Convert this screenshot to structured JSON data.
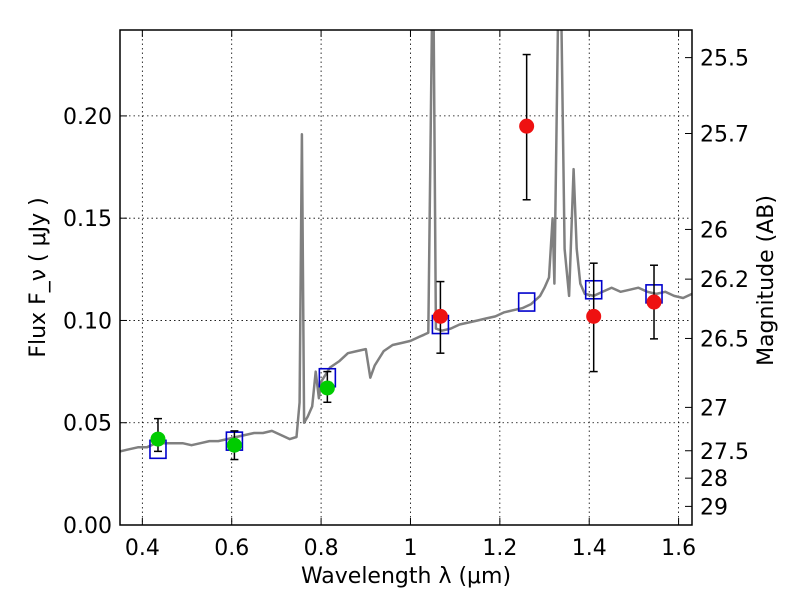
{
  "chart_data": {
    "type": "scatter",
    "xlabel": "Wavelength  λ (μm)",
    "ylabel": "Flux  F_ν  ( μJy )",
    "y2label": "Magnitude (AB)",
    "xlim": [
      0.35,
      1.63
    ],
    "ylim": [
      0.0,
      0.242
    ],
    "grid": true,
    "x_ticks": [
      {
        "value": 0.4,
        "label": "0.4"
      },
      {
        "value": 0.6,
        "label": "0.6"
      },
      {
        "value": 0.8,
        "label": "0.8"
      },
      {
        "value": 1.0,
        "label": "1"
      },
      {
        "value": 1.2,
        "label": "1.2"
      },
      {
        "value": 1.4,
        "label": "1.4"
      },
      {
        "value": 1.6,
        "label": "1.6"
      }
    ],
    "y_ticks": [
      {
        "value": 0.0,
        "label": "0.00"
      },
      {
        "value": 0.05,
        "label": "0.05"
      },
      {
        "value": 0.1,
        "label": "0.10"
      },
      {
        "value": 0.15,
        "label": "0.15"
      },
      {
        "value": 0.2,
        "label": "0.20"
      }
    ],
    "y2_ticks": [
      {
        "label": "25.5",
        "flux": 0.2285
      },
      {
        "label": "25.7",
        "flux": 0.1914
      },
      {
        "label": "26",
        "flux": 0.1445
      },
      {
        "label": "26.2",
        "flux": 0.1202
      },
      {
        "label": "26.5",
        "flux": 0.0912
      },
      {
        "label": "27",
        "flux": 0.0575
      },
      {
        "label": "27.5",
        "flux": 0.0363
      },
      {
        "label": "28",
        "flux": 0.0229
      },
      {
        "label": "29",
        "flux": 0.0091
      }
    ],
    "series": [
      {
        "marker": "open-square",
        "color": "#0000cc",
        "points": [
          {
            "x": 0.435,
            "y": 0.037
          },
          {
            "x": 0.606,
            "y": 0.041
          },
          {
            "x": 0.814,
            "y": 0.072
          },
          {
            "x": 1.067,
            "y": 0.098
          },
          {
            "x": 1.26,
            "y": 0.109
          },
          {
            "x": 1.41,
            "y": 0.115
          },
          {
            "x": 1.545,
            "y": 0.113
          }
        ]
      },
      {
        "marker": "filled-circle",
        "color": "#00cc00",
        "points": [
          {
            "x": 0.435,
            "y": 0.042,
            "err_low": 0.036,
            "err_high": 0.052
          },
          {
            "x": 0.606,
            "y": 0.039,
            "err_low": 0.032,
            "err_high": 0.046
          },
          {
            "x": 0.814,
            "y": 0.067,
            "err_low": 0.06,
            "err_high": 0.075
          }
        ]
      },
      {
        "marker": "filled-circle",
        "color": "#ee1111",
        "points": [
          {
            "x": 1.067,
            "y": 0.102,
            "err_low": 0.084,
            "err_high": 0.119
          },
          {
            "x": 1.26,
            "y": 0.195,
            "err_low": 0.159,
            "err_high": 0.23
          },
          {
            "x": 1.41,
            "y": 0.102,
            "err_low": 0.075,
            "err_high": 0.128
          },
          {
            "x": 1.545,
            "y": 0.109,
            "err_low": 0.091,
            "err_high": 0.127
          }
        ]
      },
      {
        "type": "line",
        "color": "#808080",
        "points": [
          [
            0.35,
            0.036
          ],
          [
            0.37,
            0.037
          ],
          [
            0.39,
            0.038
          ],
          [
            0.41,
            0.038
          ],
          [
            0.43,
            0.04
          ],
          [
            0.45,
            0.04
          ],
          [
            0.47,
            0.04
          ],
          [
            0.49,
            0.04
          ],
          [
            0.51,
            0.039
          ],
          [
            0.53,
            0.04
          ],
          [
            0.55,
            0.041
          ],
          [
            0.57,
            0.041
          ],
          [
            0.59,
            0.042
          ],
          [
            0.61,
            0.043
          ],
          [
            0.63,
            0.044
          ],
          [
            0.65,
            0.045
          ],
          [
            0.67,
            0.045
          ],
          [
            0.69,
            0.046
          ],
          [
            0.71,
            0.044
          ],
          [
            0.73,
            0.042
          ],
          [
            0.745,
            0.043
          ],
          [
            0.752,
            0.06
          ],
          [
            0.757,
            0.191
          ],
          [
            0.762,
            0.05
          ],
          [
            0.77,
            0.053
          ],
          [
            0.78,
            0.058
          ],
          [
            0.788,
            0.075
          ],
          [
            0.795,
            0.062
          ],
          [
            0.8,
            0.07
          ],
          [
            0.82,
            0.077
          ],
          [
            0.84,
            0.08
          ],
          [
            0.86,
            0.084
          ],
          [
            0.88,
            0.085
          ],
          [
            0.9,
            0.086
          ],
          [
            0.91,
            0.072
          ],
          [
            0.92,
            0.078
          ],
          [
            0.94,
            0.085
          ],
          [
            0.96,
            0.088
          ],
          [
            0.98,
            0.089
          ],
          [
            1.0,
            0.09
          ],
          [
            1.02,
            0.092
          ],
          [
            1.03,
            0.093
          ],
          [
            1.04,
            0.094
          ],
          [
            1.048,
            0.243
          ],
          [
            1.052,
            0.243
          ],
          [
            1.057,
            0.096
          ],
          [
            1.07,
            0.095
          ],
          [
            1.09,
            0.096
          ],
          [
            1.11,
            0.098
          ],
          [
            1.13,
            0.099
          ],
          [
            1.15,
            0.1
          ],
          [
            1.17,
            0.101
          ],
          [
            1.19,
            0.102
          ],
          [
            1.21,
            0.104
          ],
          [
            1.23,
            0.105
          ],
          [
            1.25,
            0.106
          ],
          [
            1.27,
            0.108
          ],
          [
            1.28,
            0.11
          ],
          [
            1.29,
            0.112
          ],
          [
            1.3,
            0.116
          ],
          [
            1.31,
            0.121
          ],
          [
            1.318,
            0.15
          ],
          [
            1.322,
            0.118
          ],
          [
            1.33,
            0.243
          ],
          [
            1.338,
            0.243
          ],
          [
            1.345,
            0.135
          ],
          [
            1.355,
            0.112
          ],
          [
            1.365,
            0.174
          ],
          [
            1.372,
            0.135
          ],
          [
            1.38,
            0.118
          ],
          [
            1.39,
            0.113
          ],
          [
            1.41,
            0.112
          ],
          [
            1.43,
            0.114
          ],
          [
            1.45,
            0.116
          ],
          [
            1.47,
            0.114
          ],
          [
            1.49,
            0.115
          ],
          [
            1.51,
            0.116
          ],
          [
            1.53,
            0.114
          ],
          [
            1.55,
            0.113
          ],
          [
            1.57,
            0.114
          ],
          [
            1.59,
            0.112
          ],
          [
            1.61,
            0.111
          ],
          [
            1.63,
            0.113
          ]
        ]
      }
    ]
  }
}
